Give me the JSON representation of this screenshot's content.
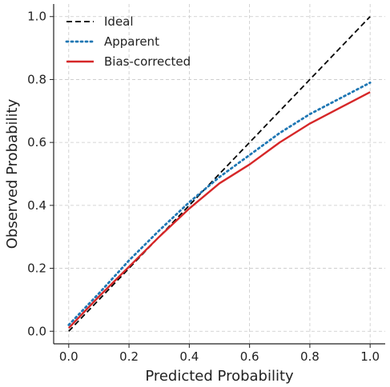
{
  "chart_data": {
    "type": "line",
    "xlabel": "Predicted Probability",
    "ylabel": "Observed Probability",
    "xlim": [
      -0.05,
      1.05
    ],
    "ylim": [
      -0.04,
      1.04
    ],
    "xticks": [
      0.0,
      0.2,
      0.4,
      0.6,
      0.8,
      1.0
    ],
    "yticks": [
      0.0,
      0.2,
      0.4,
      0.6,
      0.8,
      1.0
    ],
    "xtick_labels": [
      "0.0",
      "0.2",
      "0.4",
      "0.6",
      "0.8",
      "1.0"
    ],
    "ytick_labels": [
      "0.0",
      "0.2",
      "0.4",
      "0.6",
      "0.8",
      "1.0"
    ],
    "grid": true,
    "legend_position": "top-left",
    "series": [
      {
        "name": "Ideal",
        "style": "dashed",
        "color": "#000000",
        "x": [
          0.0,
          1.0
        ],
        "y": [
          0.0,
          1.0
        ]
      },
      {
        "name": "Apparent",
        "style": "dotted",
        "color": "#1f77b4",
        "x": [
          0.0,
          0.1,
          0.2,
          0.3,
          0.4,
          0.5,
          0.6,
          0.7,
          0.8,
          0.9,
          1.0
        ],
        "y": [
          0.02,
          0.12,
          0.225,
          0.32,
          0.41,
          0.49,
          0.56,
          0.63,
          0.69,
          0.74,
          0.79
        ]
      },
      {
        "name": "Bias-corrected",
        "style": "solid",
        "color": "#d62728",
        "x": [
          0.0,
          0.1,
          0.2,
          0.3,
          0.4,
          0.5,
          0.6,
          0.7,
          0.8,
          0.9,
          1.0
        ],
        "y": [
          0.01,
          0.11,
          0.205,
          0.3,
          0.39,
          0.47,
          0.53,
          0.6,
          0.66,
          0.71,
          0.76
        ]
      }
    ]
  }
}
